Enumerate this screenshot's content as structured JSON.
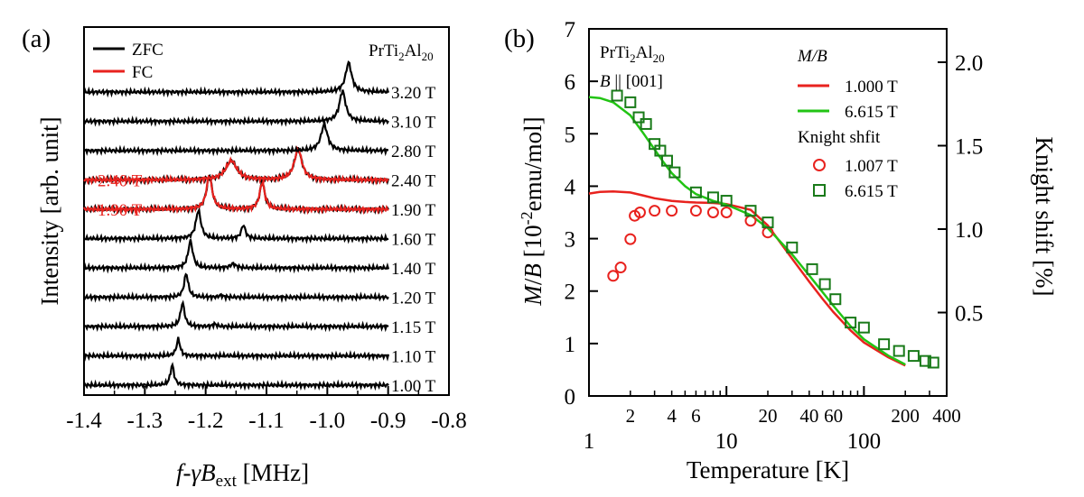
{
  "chart_data": [
    {
      "panel": "(a)",
      "type": "line",
      "title": "",
      "compound": {
        "base": "PrTi",
        "sub1": "2",
        "mid": "Al",
        "sub2": "20"
      },
      "xlabel": {
        "pre": "f-",
        "gamma": "γ",
        "B": "B",
        "sub": "ext",
        "unit": " [MHz]"
      },
      "ylabel": "Intensity [arb. unit]",
      "xlim": [
        -1.4,
        -0.8
      ],
      "x_ticks": [
        -1.4,
        -1.3,
        -1.2,
        -1.1,
        -1.0,
        -0.9,
        -0.8
      ],
      "x_tick_labels": [
        "-1.4",
        "-1.3",
        "-1.2",
        "-1.1",
        "-1.0",
        "-0.9",
        "-0.8"
      ],
      "legend": {
        "placement": "top-left",
        "entries": [
          {
            "name": "ZFC",
            "color": "#000000"
          },
          {
            "name": "FC",
            "color": "#e8221e"
          }
        ]
      },
      "series": [
        {
          "field": "1.00 T",
          "peaks": [
            {
              "pos": -1.255,
              "amp": 0.9,
              "width": 0.0035
            }
          ],
          "fc": false
        },
        {
          "field": "1.10 T",
          "peaks": [
            {
              "pos": -1.245,
              "amp": 0.75,
              "width": 0.0035
            }
          ],
          "fc": false
        },
        {
          "field": "1.15 T",
          "peaks": [
            {
              "pos": -1.238,
              "amp": 1.05,
              "width": 0.004
            },
            {
              "pos": -1.185,
              "amp": 0.1,
              "width": 0.004
            }
          ],
          "fc": false
        },
        {
          "field": "1.20 T",
          "peaks": [
            {
              "pos": -1.232,
              "amp": 1.05,
              "width": 0.004
            },
            {
              "pos": -1.175,
              "amp": 0.08,
              "width": 0.004
            }
          ],
          "fc": false
        },
        {
          "field": "1.40 T",
          "peaks": [
            {
              "pos": -1.225,
              "amp": 1.2,
              "width": 0.0045
            },
            {
              "pos": -1.155,
              "amp": 0.18,
              "width": 0.005
            }
          ],
          "fc": false
        },
        {
          "field": "1.60 T",
          "peaks": [
            {
              "pos": -1.212,
              "amp": 1.25,
              "width": 0.005
            },
            {
              "pos": -1.138,
              "amp": 0.6,
              "width": 0.004
            }
          ],
          "fc": false
        },
        {
          "field": "1.90 T",
          "peaks": [
            {
              "pos": -1.194,
              "amp": 1.5,
              "width": 0.0055
            },
            {
              "pos": -1.107,
              "amp": 1.2,
              "width": 0.005
            }
          ],
          "fc": true,
          "fc_label": "1.90 T"
        },
        {
          "field": "2.40 T",
          "peaks": [
            {
              "pos": -1.158,
              "amp": 0.85,
              "width": 0.011
            },
            {
              "pos": -1.048,
              "amp": 1.35,
              "width": 0.0075
            }
          ],
          "fc": true,
          "fc_label": "2.40 T"
        },
        {
          "field": "2.80 T",
          "peaks": [
            {
              "pos": -1.005,
              "amp": 1.15,
              "width": 0.0065
            }
          ],
          "fc": false
        },
        {
          "field": "3.10 T",
          "peaks": [
            {
              "pos": -0.975,
              "amp": 1.35,
              "width": 0.006
            }
          ],
          "fc": false
        },
        {
          "field": "3.20 T",
          "peaks": [
            {
              "pos": -0.965,
              "amp": 1.3,
              "width": 0.006
            }
          ],
          "fc": false
        }
      ]
    },
    {
      "panel": "(b)",
      "type": "line+scatter",
      "compound": {
        "base": "PrTi",
        "sub1": "2",
        "mid": "Al",
        "sub2": "20"
      },
      "orientation": {
        "B": "B",
        "rest": " || [001]"
      },
      "xlabel": "Temperature [K]",
      "xscale": "log",
      "xlim": [
        1,
        400
      ],
      "x_major_ticks": [
        1,
        10,
        100
      ],
      "x_minor_labels": [
        2,
        4,
        6,
        20,
        40,
        60,
        200,
        400
      ],
      "ylabel_left": {
        "M": "M",
        "slash": "/",
        "B": "B",
        "pre": " [10",
        "exp": "-2",
        "unit": "emu/mol]"
      },
      "ylim_left": [
        0,
        7
      ],
      "y_left_ticks": [
        0,
        1,
        2,
        3,
        4,
        5,
        6,
        7
      ],
      "ylabel_right": "Knight shift [%]",
      "ylim_right": [
        0,
        2.2
      ],
      "y_right_ticks": [
        0.5,
        1.0,
        1.5,
        2.0
      ],
      "y_right_tick_labels": [
        "0.5",
        "1.0",
        "1.5",
        "2.0"
      ],
      "legend": {
        "placement": "top-right",
        "mb_title": "M/B",
        "knight_title": "Knight shfit",
        "entries": [
          {
            "name": "1.000 T",
            "kind": "line",
            "color": "#e8221e"
          },
          {
            "name": "6.615 T",
            "kind": "line",
            "color": "#22c414"
          },
          {
            "name": "1.007 T",
            "kind": "circle",
            "color": "#e8221e"
          },
          {
            "name": "6.615 T",
            "kind": "square",
            "color": "#197a19"
          }
        ]
      },
      "mb_1T": {
        "name": "M/B 1.000 T",
        "color": "#e8221e",
        "x": [
          1,
          1.2,
          1.5,
          2,
          2.5,
          3,
          4,
          5,
          6,
          8,
          10,
          15,
          20,
          30,
          40,
          50,
          60,
          80,
          100,
          150,
          200
        ],
        "y": [
          3.86,
          3.89,
          3.9,
          3.88,
          3.82,
          3.77,
          3.72,
          3.7,
          3.69,
          3.68,
          3.66,
          3.55,
          3.25,
          2.62,
          2.18,
          1.85,
          1.6,
          1.25,
          1.02,
          0.74,
          0.58
        ]
      },
      "mb_6T": {
        "name": "M/B 6.615 T",
        "color": "#22c414",
        "x": [
          1,
          1.2,
          1.5,
          2,
          2.5,
          3,
          3.5,
          4,
          5,
          6,
          8,
          10,
          15,
          20,
          30,
          40,
          50,
          60,
          80,
          100,
          150,
          200
        ],
        "y": [
          5.7,
          5.68,
          5.6,
          5.35,
          5.0,
          4.7,
          4.45,
          4.25,
          4.0,
          3.85,
          3.72,
          3.65,
          3.45,
          3.2,
          2.7,
          2.3,
          1.98,
          1.72,
          1.33,
          1.08,
          0.77,
          0.6
        ]
      },
      "knight_1T": {
        "name": "Knight shift 1.007 T",
        "color": "#e8221e",
        "x": [
          1.5,
          1.7,
          2.0,
          2.15,
          2.35,
          3,
          4,
          6,
          8,
          10,
          15,
          20
        ],
        "y": [
          0.72,
          0.77,
          0.94,
          1.08,
          1.1,
          1.11,
          1.11,
          1.11,
          1.1,
          1.1,
          1.05,
          0.98
        ]
      },
      "knight_6T": {
        "name": "Knight shift 6.615 T",
        "color": "#197a19",
        "x": [
          1.6,
          2.0,
          2.3,
          2.6,
          3.0,
          3.3,
          3.7,
          4.2,
          6.0,
          8.0,
          10,
          15,
          20,
          30,
          42,
          52,
          62,
          80,
          100,
          140,
          180,
          230,
          280,
          320
        ],
        "y": [
          1.8,
          1.76,
          1.67,
          1.63,
          1.51,
          1.47,
          1.41,
          1.34,
          1.22,
          1.19,
          1.17,
          1.11,
          1.04,
          0.89,
          0.76,
          0.67,
          0.58,
          0.44,
          0.41,
          0.31,
          0.27,
          0.24,
          0.21,
          0.2
        ]
      }
    }
  ]
}
